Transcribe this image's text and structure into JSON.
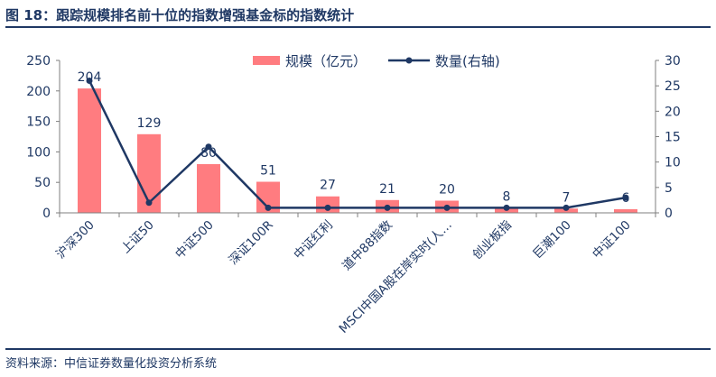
{
  "header": {
    "title": "图 18：跟踪规模排名前十位的指数增强基金标的指数统计"
  },
  "footer": {
    "source": "资料来源：中信证券数量化投资分析系统"
  },
  "colors": {
    "bar": "#ff7c80",
    "line": "#1f3864",
    "text": "#1f3864",
    "axis": "#7f7f7f"
  },
  "chart_data": {
    "type": "bar",
    "categories": [
      "沪深300",
      "上证50",
      "中证500",
      "深证100R",
      "中证红利",
      "道中88指数",
      "MSCI中国A股在岸实时(人…",
      "创业板指",
      "巨潮100",
      "中证100"
    ],
    "series": [
      {
        "name": "规模（亿元）",
        "type": "bar",
        "axis": "left",
        "values": [
          204,
          129,
          80,
          51,
          27,
          21,
          20,
          8,
          7,
          6
        ],
        "data_labels": [
          "204",
          "129",
          "80",
          "51",
          "27",
          "21",
          "20",
          "8",
          "7",
          "6"
        ]
      },
      {
        "name": "数量(右轴)",
        "type": "line",
        "axis": "right",
        "values": [
          26,
          2,
          13,
          1,
          1,
          1,
          1,
          1,
          1,
          3
        ]
      }
    ],
    "y_left": {
      "range": [
        0,
        250
      ],
      "ticks": [
        "0",
        "50",
        "100",
        "150",
        "200",
        "250"
      ]
    },
    "y_right": {
      "range": [
        0,
        30
      ],
      "ticks": [
        "0",
        "5",
        "10",
        "15",
        "20",
        "25",
        "30"
      ]
    },
    "legend": "top-center",
    "grid": false
  }
}
